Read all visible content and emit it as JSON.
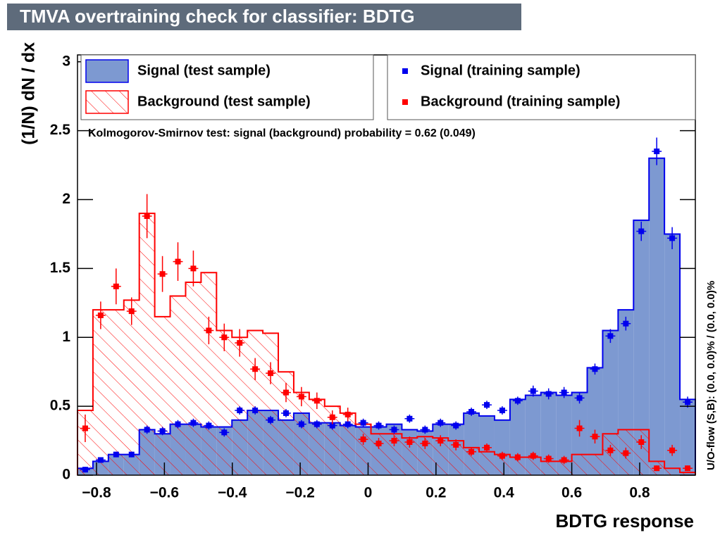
{
  "chart_data": {
    "type": "histogram",
    "title": "TMVA overtraining check for classifier: BDTG",
    "x_label": "BDTG response",
    "y_label": "(1/N) dN / dx",
    "side_label": "U/O-flow (S,B): (0.0, 0.0)% / (0.0, 0.0)%",
    "annotation": "Kolmogorov-Smirnov test: signal (background) probability =  0.62 (0.049)",
    "xlim": [
      -0.856,
      0.964
    ],
    "ylim": [
      0,
      3.05
    ],
    "xticks": [
      {
        "value": -0.8,
        "label": "−0.8"
      },
      {
        "value": -0.6,
        "label": "−0.6"
      },
      {
        "value": -0.4,
        "label": "−0.4"
      },
      {
        "value": -0.2,
        "label": "−0.2"
      },
      0,
      0.2,
      0.4,
      0.6,
      0.8
    ],
    "yticks": [
      0,
      0.5,
      1,
      1.5,
      2,
      2.5,
      3
    ],
    "bins": [
      -0.856,
      -0.8105,
      -0.765,
      -0.7195,
      -0.674,
      -0.6285,
      -0.583,
      -0.5375,
      -0.492,
      -0.4465,
      -0.401,
      -0.3555,
      -0.31,
      -0.2645,
      -0.219,
      -0.1735,
      -0.128,
      -0.0825,
      -0.037,
      0.0085,
      0.054,
      0.0995,
      0.145,
      0.1905,
      0.236,
      0.2815,
      0.327,
      0.3725,
      0.418,
      0.4635,
      0.509,
      0.5545,
      0.6,
      0.6455,
      0.691,
      0.7365,
      0.782,
      0.8275,
      0.873,
      0.9185,
      0.964
    ],
    "series": [
      {
        "name": "Signal (test sample)",
        "style": "filled",
        "color": "#0000ee",
        "fill": "#7d99d1",
        "values": [
          0.05,
          0.1,
          0.15,
          0.15,
          0.33,
          0.3,
          0.37,
          0.37,
          0.35,
          0.35,
          0.4,
          0.47,
          0.47,
          0.4,
          0.45,
          0.38,
          0.38,
          0.36,
          0.35,
          0.35,
          0.37,
          0.33,
          0.32,
          0.37,
          0.37,
          0.45,
          0.43,
          0.4,
          0.55,
          0.58,
          0.6,
          0.58,
          0.6,
          0.78,
          1.05,
          1.2,
          1.85,
          2.3,
          1.75,
          0.55
        ]
      },
      {
        "name": "Background (test sample)",
        "style": "hatched",
        "color": "#ff0000",
        "values": [
          0.47,
          1.2,
          1.2,
          1.27,
          1.9,
          1.15,
          1.3,
          1.4,
          1.47,
          1.05,
          1.0,
          1.05,
          1.03,
          0.75,
          0.6,
          0.55,
          0.5,
          0.45,
          0.37,
          0.3,
          0.3,
          0.27,
          0.28,
          0.27,
          0.25,
          0.2,
          0.17,
          0.15,
          0.13,
          0.13,
          0.1,
          0.1,
          0.15,
          0.15,
          0.3,
          0.33,
          0.33,
          0.1,
          0.05,
          0.02
        ]
      },
      {
        "name": "Signal (training sample)",
        "style": "points",
        "color": "#0000ee",
        "values": [
          0.04,
          0.11,
          0.15,
          0.15,
          0.33,
          0.32,
          0.37,
          0.38,
          0.36,
          0.31,
          0.47,
          0.47,
          0.4,
          0.45,
          0.37,
          0.37,
          0.36,
          0.37,
          0.38,
          0.36,
          0.33,
          0.41,
          0.33,
          0.38,
          0.36,
          0.46,
          0.51,
          0.47,
          0.54,
          0.61,
          0.59,
          0.6,
          0.56,
          0.77,
          1.01,
          1.1,
          1.77,
          2.35,
          1.72,
          0.53
        ],
        "errors": [
          0.02,
          0.02,
          0.02,
          0.02,
          0.03,
          0.03,
          0.03,
          0.03,
          0.03,
          0.03,
          0.03,
          0.03,
          0.03,
          0.03,
          0.03,
          0.03,
          0.03,
          0.03,
          0.03,
          0.03,
          0.03,
          0.03,
          0.03,
          0.03,
          0.03,
          0.03,
          0.03,
          0.03,
          0.03,
          0.04,
          0.04,
          0.04,
          0.04,
          0.04,
          0.05,
          0.05,
          0.07,
          0.1,
          0.08,
          0.04
        ]
      },
      {
        "name": "Background (training sample)",
        "style": "points",
        "color": "#ff0000",
        "values": [
          0.34,
          1.16,
          1.37,
          1.19,
          1.88,
          1.46,
          1.55,
          1.5,
          1.05,
          1.0,
          0.96,
          0.77,
          0.74,
          0.6,
          0.57,
          0.54,
          0.42,
          0.44,
          0.26,
          0.23,
          0.25,
          0.24,
          0.23,
          0.25,
          0.22,
          0.17,
          0.2,
          0.14,
          0.13,
          0.14,
          0.12,
          0.11,
          0.34,
          0.28,
          0.18,
          0.16,
          0.24,
          0.05,
          0.18,
          0.05
        ],
        "errors": [
          0.1,
          0.1,
          0.13,
          0.1,
          0.16,
          0.13,
          0.14,
          0.13,
          0.1,
          0.1,
          0.1,
          0.08,
          0.08,
          0.07,
          0.07,
          0.06,
          0.05,
          0.05,
          0.04,
          0.04,
          0.04,
          0.04,
          0.04,
          0.04,
          0.04,
          0.03,
          0.03,
          0.03,
          0.03,
          0.03,
          0.03,
          0.03,
          0.06,
          0.05,
          0.04,
          0.04,
          0.05,
          0.02,
          0.04,
          0.02
        ]
      }
    ]
  }
}
